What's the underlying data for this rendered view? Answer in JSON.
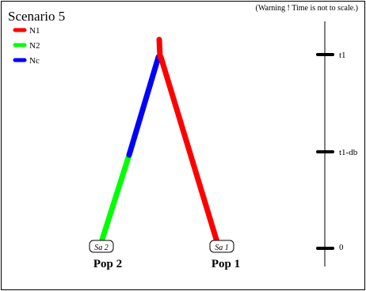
{
  "title": "Scenario 5",
  "warning": "(Warning ! Time is not to scale.)",
  "legend": [
    {
      "label": "N1",
      "color": "#ff0000"
    },
    {
      "label": "N2",
      "color": "#00ff00"
    },
    {
      "label": "Nc",
      "color": "#0000ff"
    }
  ],
  "time_labels": {
    "t1": "t1",
    "t1_db": "t1-db",
    "zero": "0"
  },
  "samples": {
    "pop2": {
      "tag": "Sa 2",
      "name": "Pop 2"
    },
    "pop1": {
      "tag": "Sa 1",
      "name": "Pop 1"
    }
  },
  "colors": {
    "n1": "#ff0000",
    "n2": "#00ff00",
    "nc": "#0000ff",
    "axis": "#000000"
  }
}
